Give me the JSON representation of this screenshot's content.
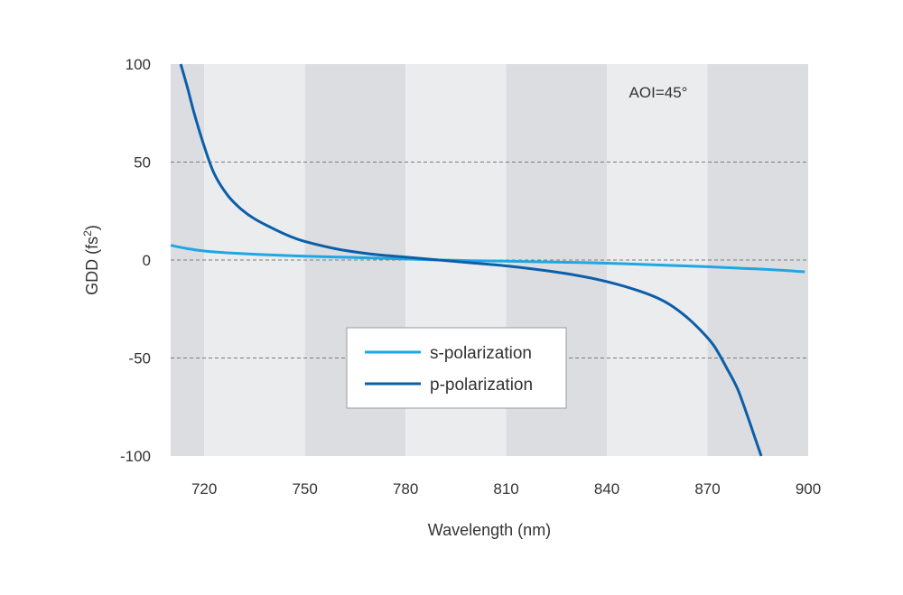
{
  "chart_data": {
    "type": "line",
    "xlabel": "Wavelength (nm)",
    "ylabel_main": "GDD (fs",
    "ylabel_sup": "2",
    "ylabel_close": ")",
    "annotation": "AOI=45°",
    "xlim": [
      710,
      900
    ],
    "ylim": [
      -100,
      100
    ],
    "x_ticks": [
      720,
      750,
      780,
      810,
      840,
      870,
      900
    ],
    "x_tick_labels": [
      "720",
      "750",
      "780",
      "810",
      "840",
      "870",
      "900"
    ],
    "y_ticks": [
      100,
      50,
      0,
      -50,
      -100
    ],
    "y_tick_labels": [
      "100",
      "50",
      "0",
      "-50",
      "-100"
    ],
    "grid": "horizontal dashed",
    "background_bands": [
      {
        "from": 710,
        "to": 720,
        "color": "#dcdde0"
      },
      {
        "from": 720,
        "to": 750,
        "color": "#ebecee"
      },
      {
        "from": 750,
        "to": 780,
        "color": "#dcdde0"
      },
      {
        "from": 780,
        "to": 810,
        "color": "#ebecee"
      },
      {
        "from": 810,
        "to": 840,
        "color": "#dcdde0"
      },
      {
        "from": 840,
        "to": 870,
        "color": "#ebecee"
      },
      {
        "from": 870,
        "to": 900,
        "color": "#dcdde0"
      }
    ],
    "legend_placement": "center-left",
    "series": [
      {
        "name": "s-polarization",
        "color": "#1ea7e4",
        "x": [
          710,
          715,
          720,
          725,
          730,
          740,
          750,
          760,
          770,
          780,
          790,
          800,
          810,
          820,
          830,
          840,
          850,
          860,
          870,
          880,
          890,
          899
        ],
        "y": [
          7.5,
          5.8,
          4.6,
          3.9,
          3.4,
          2.6,
          2.0,
          1.5,
          1.0,
          0.5,
          0.0,
          -0.3,
          -0.6,
          -0.9,
          -1.2,
          -1.6,
          -2.2,
          -2.8,
          -3.4,
          -4.2,
          -5.0,
          -6.0
        ]
      },
      {
        "name": "p-polarization",
        "color": "#0b5ea8",
        "x": [
          713,
          715,
          717,
          720,
          723,
          727,
          731,
          735,
          740,
          745,
          750,
          760,
          770,
          780,
          790,
          800,
          810,
          820,
          830,
          840,
          850,
          857,
          863,
          868,
          872,
          876,
          879,
          882,
          884,
          886
        ],
        "y": [
          100,
          88,
          75,
          58,
          44,
          33,
          26,
          21,
          16.5,
          12.5,
          9.5,
          5.5,
          3.0,
          1.5,
          0.0,
          -1.5,
          -3.0,
          -5.0,
          -7.5,
          -11,
          -16,
          -21,
          -28,
          -36,
          -44,
          -56,
          -66,
          -80,
          -90,
          -100
        ]
      }
    ]
  }
}
